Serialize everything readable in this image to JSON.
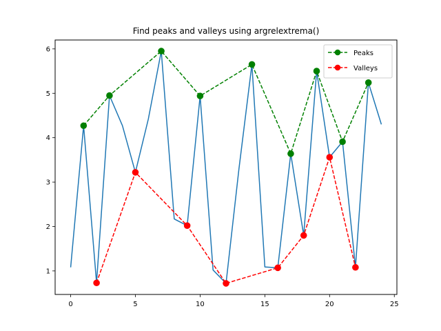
{
  "chart_data": {
    "type": "line",
    "title": "Find peaks and valleys using argrelextrema()",
    "xlabel": "",
    "ylabel": "",
    "xlim": [
      -1.2,
      25.2
    ],
    "ylim": [
      0.47,
      6.2
    ],
    "xticks": [
      0,
      5,
      10,
      15,
      20,
      25
    ],
    "yticks": [
      1,
      2,
      3,
      4,
      5,
      6
    ],
    "xtick_labels": [
      "0",
      "5",
      "10",
      "15",
      "20",
      "25"
    ],
    "ytick_labels": [
      "1",
      "2",
      "3",
      "4",
      "5",
      "6"
    ],
    "grid": false,
    "legend_position": "top-right",
    "series": [
      {
        "color": "#1f77b4",
        "style": "solid",
        "marker": "none",
        "x": [
          0,
          1,
          2,
          3,
          4,
          5,
          6,
          7,
          8,
          9,
          10,
          11,
          12,
          13,
          14,
          15,
          16,
          17,
          18,
          19,
          20,
          21,
          22,
          23,
          24
        ],
        "y": [
          1.08,
          4.27,
          0.73,
          4.95,
          4.27,
          3.22,
          4.42,
          5.95,
          2.17,
          2.02,
          4.94,
          1.02,
          0.72,
          3.3,
          5.65,
          1.09,
          1.07,
          3.64,
          1.8,
          5.5,
          3.56,
          3.91,
          1.08,
          5.24,
          4.3
        ]
      },
      {
        "name": "Peaks",
        "color": "#008000",
        "style": "dashed",
        "marker": "circle",
        "x": [
          1,
          3,
          7,
          10,
          14,
          17,
          19,
          21,
          23
        ],
        "y": [
          4.27,
          4.95,
          5.95,
          4.94,
          5.65,
          3.64,
          5.5,
          3.91,
          5.24
        ]
      },
      {
        "name": "Valleys",
        "color": "#ff0000",
        "style": "dashed",
        "marker": "circle",
        "x": [
          2,
          5,
          9,
          12,
          16,
          18,
          20,
          22
        ],
        "y": [
          0.73,
          3.22,
          2.02,
          0.72,
          1.07,
          1.8,
          3.56,
          1.08
        ]
      }
    ]
  }
}
